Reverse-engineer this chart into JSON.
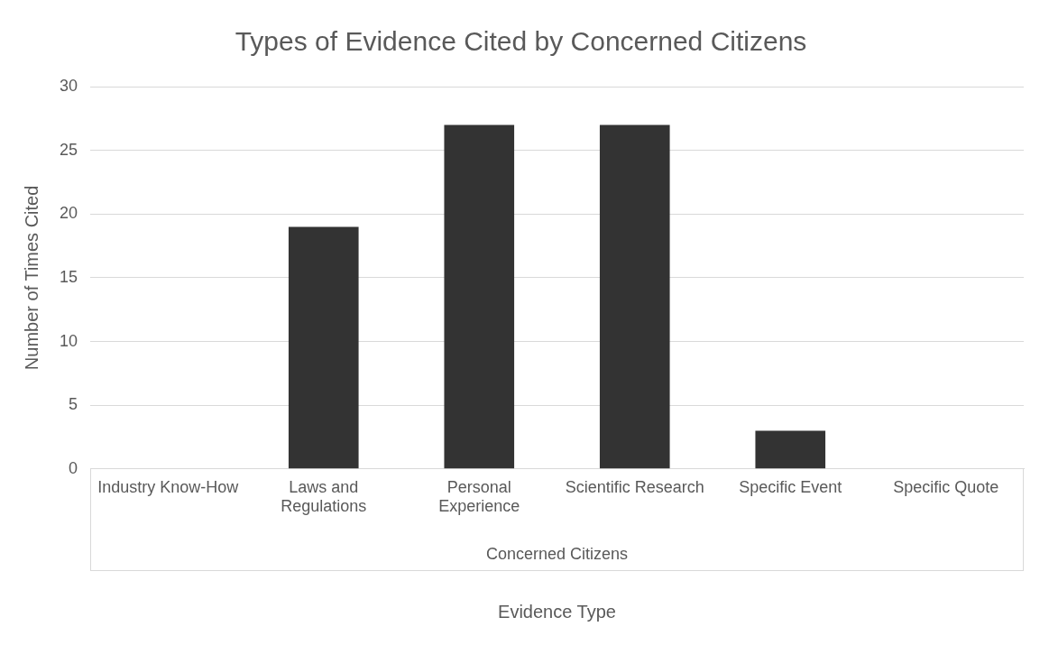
{
  "chart_data": {
    "type": "bar",
    "title": "Types of Evidence Cited by Concerned Citizens",
    "categories": [
      "Industry Know-How",
      "Laws and Regulations",
      "Personal Experience",
      "Scientific Research",
      "Specific Event",
      "Specific Quote"
    ],
    "values": [
      0,
      19,
      27,
      27,
      3,
      0
    ],
    "color": "#333333",
    "ylim": [
      0,
      30
    ],
    "yticks": [
      0,
      5,
      10,
      15,
      20,
      25,
      30
    ],
    "grid": "y",
    "legend": false,
    "ylabel": "Number of Times Cited",
    "xlabel": "Evidence Type",
    "annotations": [
      "Concerned Citizens"
    ]
  }
}
